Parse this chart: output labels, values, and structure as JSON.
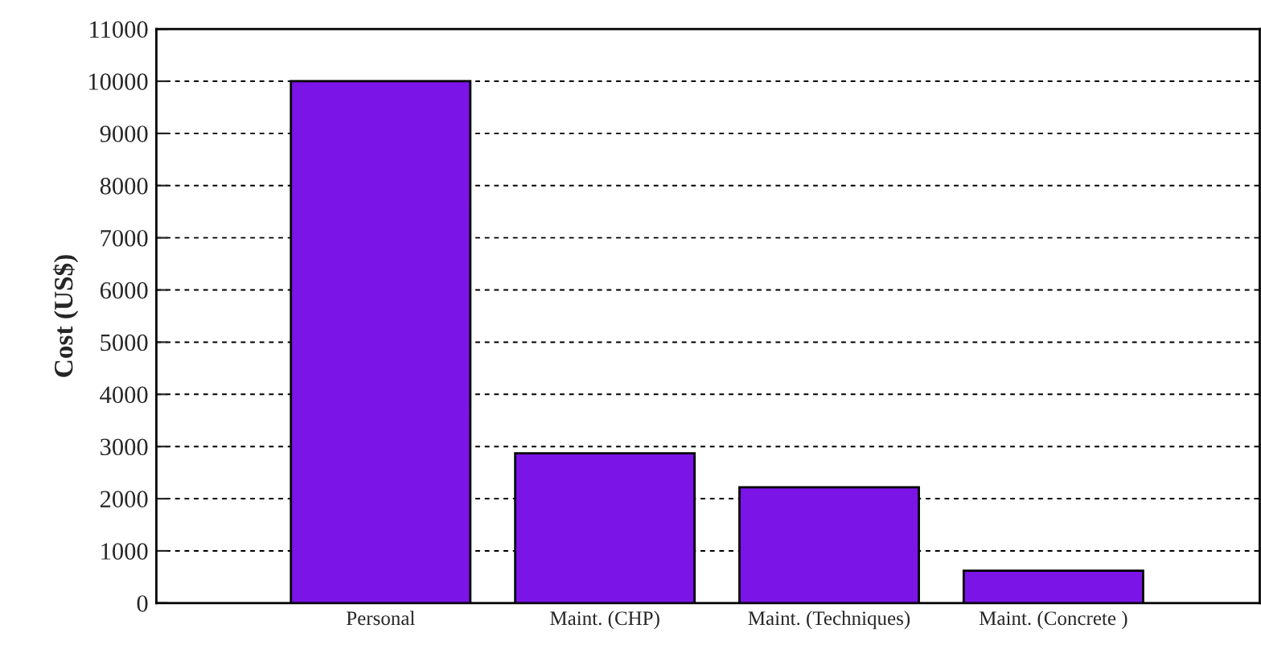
{
  "chart_data": {
    "type": "bar",
    "ylabel": "Cost (US$)",
    "categories": [
      "Personal",
      "Maint. (CHP)",
      "Maint. (Techniques)",
      "Maint. (Concrete )"
    ],
    "values": [
      10000,
      2870,
      2220,
      620
    ],
    "color": "#7b14e6",
    "ylim": [
      0,
      11000
    ],
    "yticks": [
      0,
      1000,
      2000,
      3000,
      4000,
      5000,
      6000,
      7000,
      8000,
      9000,
      10000,
      11000
    ],
    "grid": "y",
    "legend": false
  }
}
